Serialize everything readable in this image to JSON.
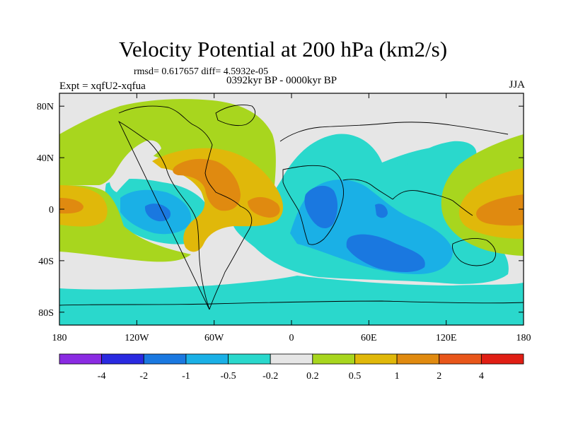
{
  "header": {
    "title": "Velocity Potential at 200 hPa (km2/s)",
    "stats": "rmsd= 0.617657 diff= 4.5932e-05",
    "left_label": "Expt = xqfU2-xqfua",
    "center_label": "0392kyr BP - 0000kyr BP",
    "right_label": "JJA"
  },
  "map": {
    "lon_range": [
      -180,
      180
    ],
    "lat_range": [
      -90,
      90
    ],
    "y_ticks": [
      {
        "lat": 80,
        "label": "80N"
      },
      {
        "lat": 40,
        "label": "40N"
      },
      {
        "lat": 0,
        "label": "0"
      },
      {
        "lat": -40,
        "label": "40S"
      },
      {
        "lat": -80,
        "label": "80S"
      }
    ],
    "x_ticks": [
      {
        "lon": -180,
        "label": "180"
      },
      {
        "lon": -120,
        "label": "120W"
      },
      {
        "lon": -60,
        "label": "60W"
      },
      {
        "lon": 0,
        "label": "0"
      },
      {
        "lon": 60,
        "label": "60E"
      },
      {
        "lon": 120,
        "label": "120E"
      },
      {
        "lon": 180,
        "label": "180"
      }
    ]
  },
  "colorbar": {
    "colors": [
      "#8a2be2",
      "#2a2ae0",
      "#1a78e0",
      "#1ab0e6",
      "#2ad8cc",
      "#e6e6e6",
      "#a8d61e",
      "#e0b80a",
      "#e08a10",
      "#e8561a",
      "#e01e14"
    ],
    "labels": [
      "-4",
      "-2",
      "-1",
      "-0.5",
      "-0.2",
      "0.2",
      "0.5",
      "1",
      "2",
      "4"
    ]
  }
}
